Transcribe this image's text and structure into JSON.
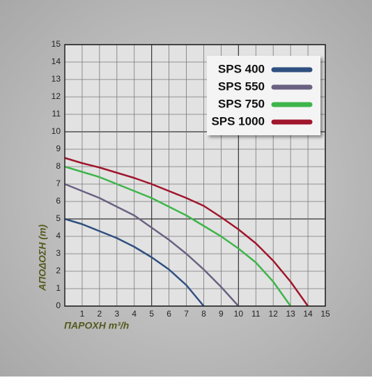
{
  "chart_data": {
    "type": "line",
    "x_label": "ΠΑΡΟΧΗ m³/h",
    "y_label": "ΑΠΟΔΟΣΗ (m)",
    "xlim": [
      0,
      15
    ],
    "ylim": [
      0,
      15
    ],
    "xticks": [
      1,
      2,
      3,
      4,
      5,
      6,
      7,
      8,
      9,
      10,
      11,
      12,
      13,
      14,
      15
    ],
    "yticks": [
      0,
      1,
      2,
      3,
      4,
      5,
      6,
      7,
      8,
      9,
      10,
      11,
      12,
      13,
      14,
      15
    ],
    "grid": true,
    "legend": "upper right",
    "series": [
      {
        "name": "SPS 400",
        "color": "#2f4f80",
        "x": [
          0,
          1,
          2,
          3,
          4,
          5,
          6,
          7,
          8
        ],
        "values": [
          5,
          4.7,
          4.3,
          3.9,
          3.4,
          2.8,
          2.1,
          1.2,
          0
        ]
      },
      {
        "name": "SPS 550",
        "color": "#6b6182",
        "x": [
          0,
          1,
          2,
          3,
          4,
          5,
          6,
          7,
          8,
          9,
          10
        ],
        "values": [
          7,
          6.6,
          6.2,
          5.7,
          5.2,
          4.5,
          3.8,
          3.0,
          2.1,
          1.1,
          0
        ]
      },
      {
        "name": "SPS 750",
        "color": "#3db54a",
        "x": [
          0,
          1,
          2,
          3,
          4,
          5,
          6,
          7,
          8,
          9,
          10,
          11,
          12,
          13
        ],
        "values": [
          8,
          7.7,
          7.4,
          7.0,
          6.6,
          6.2,
          5.7,
          5.2,
          4.6,
          4.0,
          3.3,
          2.5,
          1.4,
          0
        ]
      },
      {
        "name": "SPS 1000",
        "color": "#a0152b",
        "x": [
          0,
          1,
          2,
          3,
          4,
          5,
          6,
          7,
          8,
          9,
          10,
          11,
          12,
          13,
          14
        ],
        "values": [
          8.5,
          8.2,
          7.95,
          7.65,
          7.35,
          7.0,
          6.6,
          6.2,
          5.75,
          5.1,
          4.4,
          3.6,
          2.6,
          1.4,
          0
        ]
      }
    ]
  }
}
